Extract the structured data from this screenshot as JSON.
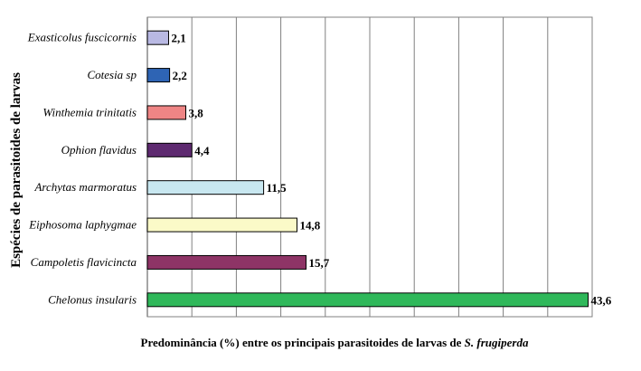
{
  "chart_data": {
    "type": "bar",
    "orientation": "horizontal",
    "categories": [
      "Exasticolus fuscicornis",
      "Cotesia sp",
      "Winthemia trinitatis",
      "Ophion flavidus",
      "Archytas marmoratus",
      "Eiphosoma laphygmae",
      "Campoletis flavicincta",
      "Chelonus insularis"
    ],
    "values": [
      2.1,
      2.2,
      3.8,
      4.4,
      11.5,
      14.8,
      15.7,
      43.6
    ],
    "value_labels": [
      "2,1",
      "2,2",
      "3,8",
      "4,4",
      "11,5",
      "14,8",
      "15,7",
      "43,6"
    ],
    "bar_colors": [
      "#b9b9e3",
      "#2e64b4",
      "#ef8585",
      "#5e2a70",
      "#c8e7f0",
      "#fbfac8",
      "#8e3466",
      "#2fb85a"
    ],
    "xlabel": "Predominância (%) entre os principais parasitoides de larvas de",
    "xlabel_italic": "S. frugiperda",
    "ylabel": "Espécies de parasitoides de larvas",
    "xlim": [
      0,
      44
    ],
    "x_gridlines": [
      0,
      4.4,
      8.8,
      13.2,
      17.6,
      22,
      26.4,
      30.8,
      35.2,
      39.6,
      44
    ],
    "grid": true,
    "tick_labels_shown": false
  }
}
